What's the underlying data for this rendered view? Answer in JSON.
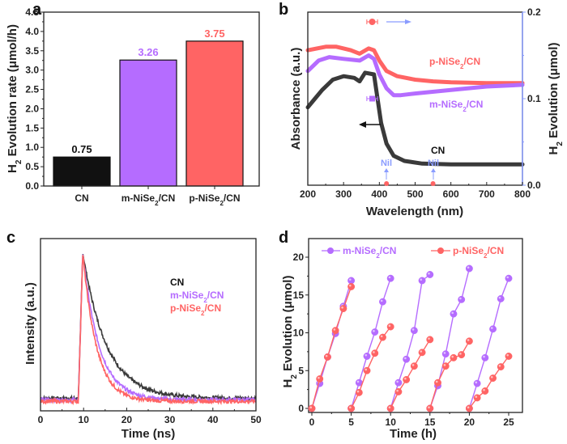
{
  "colors": {
    "cn": "#111111",
    "cn_curve": "#3a3a3a",
    "m": "#b56cff",
    "p": "#ff6464",
    "right_axis": "#8a9cff"
  },
  "chart_data": [
    {
      "panel": "a",
      "type": "bar",
      "title": "",
      "xlabel": "",
      "ylabel": "H2 Evolution rate (μmol/h)",
      "categories": [
        "CN",
        "m-NiSe2/CN",
        "p-NiSe2/CN"
      ],
      "values": [
        0.75,
        3.26,
        3.75
      ],
      "data_labels": [
        "0.75",
        "3.26",
        "3.75"
      ],
      "ylim": [
        0,
        4.5
      ],
      "yticks": [
        "0.0",
        "0.5",
        "1.0",
        "1.5",
        "2.0",
        "2.5",
        "3.0",
        "3.5",
        "4.0",
        "4.5"
      ],
      "grid": false
    },
    {
      "panel": "b",
      "type": "line",
      "xlabel": "Wavelength (nm)",
      "ylabel_left": "Absorbance (a.u.)",
      "ylabel_right": "H2 Evolution (μmol)",
      "xlim": [
        200,
        800
      ],
      "xticks": [
        "200",
        "300",
        "400",
        "500",
        "600",
        "700",
        "800"
      ],
      "ylim_right": [
        0,
        0.2
      ],
      "yticks_right": [
        "0.0",
        "0.1",
        "0.2"
      ],
      "series": [
        {
          "name": "p-NiSe2/CN",
          "x": [
            200,
            250,
            280,
            320,
            345,
            370,
            385,
            400,
            420,
            450,
            500,
            550,
            600,
            700,
            800
          ],
          "y": [
            0.78,
            0.8,
            0.8,
            0.78,
            0.76,
            0.79,
            0.78,
            0.72,
            0.66,
            0.63,
            0.61,
            0.6,
            0.595,
            0.59,
            0.59
          ]
        },
        {
          "name": "m-NiSe2/CN",
          "x": [
            200,
            230,
            260,
            300,
            345,
            370,
            385,
            400,
            420,
            440,
            460,
            500,
            600,
            700,
            800
          ],
          "y": [
            0.66,
            0.72,
            0.74,
            0.73,
            0.72,
            0.75,
            0.73,
            0.64,
            0.56,
            0.52,
            0.52,
            0.53,
            0.55,
            0.57,
            0.58
          ]
        },
        {
          "name": "CN",
          "x": [
            200,
            220,
            240,
            270,
            300,
            330,
            345,
            360,
            385,
            395,
            405,
            420,
            440,
            470,
            520,
            600,
            700,
            800
          ],
          "y": [
            0.45,
            0.5,
            0.55,
            0.61,
            0.63,
            0.62,
            0.6,
            0.65,
            0.64,
            0.5,
            0.36,
            0.24,
            0.17,
            0.14,
            0.125,
            0.12,
            0.12,
            0.12
          ]
        }
      ],
      "points_right_axis": [
        {
          "name": "p-NiSe2/CN",
          "x": 380,
          "y": 0.2,
          "xerr": 15
        },
        {
          "name": "m-NiSe2/CN",
          "x": 380,
          "y": 0.1,
          "xerr": 15
        },
        {
          "name": "p-NiSe2/CN",
          "x": 420,
          "y": 0.0
        },
        {
          "name": "p-NiSe2/CN",
          "x": 550,
          "y": 0.0
        }
      ],
      "annotations": [
        "p-NiSe2/CN",
        "m-NiSe2/CN",
        "CN",
        "Nil",
        "Nil"
      ]
    },
    {
      "panel": "c",
      "type": "line",
      "xlabel": "Time (ns)",
      "ylabel": "Intensity (a.u.)",
      "xlim": [
        0,
        50
      ],
      "xticks": [
        "0",
        "10",
        "20",
        "30",
        "40",
        "50"
      ],
      "legend": [
        "CN",
        "m-NiSe2/CN",
        "p-NiSe2/CN"
      ],
      "legend_position": "center-right",
      "series": [
        {
          "name": "CN",
          "peak_time": 9.8,
          "decay_tau": 5.5,
          "baseline": 0.04
        },
        {
          "name": "m-NiSe2/CN",
          "peak_time": 9.8,
          "decay_tau": 3.8,
          "baseline": 0.03
        },
        {
          "name": "p-NiSe2/CN",
          "peak_time": 9.8,
          "decay_tau": 3.2,
          "baseline": 0.02
        }
      ]
    },
    {
      "panel": "d",
      "type": "line",
      "xlabel": "Time (h)",
      "ylabel": "H2 Evolution (μmol)",
      "xlim": [
        -0.5,
        27
      ],
      "xticks": [
        "0",
        "5",
        "10",
        "15",
        "20",
        "25"
      ],
      "ylim": [
        -0.5,
        22
      ],
      "yticks": [
        "0",
        "5",
        "10",
        "15",
        "20"
      ],
      "legend": [
        "m-NiSe2/CN",
        "p-NiSe2/CN"
      ],
      "legend_position": "top",
      "series": [
        {
          "name": "m-NiSe2/CN",
          "cycles": [
            {
              "x": [
                0,
                1,
                2,
                3,
                4,
                5
              ],
              "y": [
                0,
                3.3,
                6.8,
                9.9,
                13.5,
                16.9
              ]
            },
            {
              "x": [
                5,
                6,
                7,
                8,
                9,
                10
              ],
              "y": [
                0,
                3.4,
                6.9,
                10.1,
                14.1,
                17.2
              ]
            },
            {
              "x": [
                10,
                11,
                12,
                13,
                14,
                15
              ],
              "y": [
                0,
                3.4,
                6.5,
                10.3,
                16.9,
                17.7
              ]
            },
            {
              "x": [
                15,
                16,
                17,
                18,
                19,
                20
              ],
              "y": [
                0,
                3.0,
                7.2,
                12.5,
                14.4,
                18.5
              ]
            },
            {
              "x": [
                20,
                21,
                22,
                23,
                24,
                25
              ],
              "y": [
                0,
                3.3,
                6.7,
                10.5,
                14.5,
                17.2
              ]
            }
          ]
        },
        {
          "name": "p-NiSe2/CN",
          "cycles": [
            {
              "x": [
                0,
                1,
                2,
                3,
                4,
                5
              ],
              "y": [
                0,
                3.9,
                6.8,
                10.3,
                13.2,
                16.1
              ]
            },
            {
              "x": [
                5,
                6,
                7,
                8,
                9,
                10
              ],
              "y": [
                0,
                2.1,
                5.0,
                7.3,
                9.4,
                10.8
              ]
            },
            {
              "x": [
                10,
                11,
                12,
                13,
                14,
                15
              ],
              "y": [
                0,
                2.2,
                3.8,
                5.6,
                7.4,
                9.1
              ]
            },
            {
              "x": [
                15,
                16,
                17,
                18,
                19,
                20
              ],
              "y": [
                0,
                3.4,
                5.6,
                6.7,
                7.1,
                8.9
              ]
            },
            {
              "x": [
                20,
                21,
                22,
                23,
                24,
                25
              ],
              "y": [
                0,
                1.4,
                2.3,
                4.0,
                5.5,
                6.9
              ]
            }
          ]
        }
      ]
    }
  ],
  "labels": {
    "panel_a": "a",
    "panel_b": "b",
    "panel_c": "c",
    "panel_d": "d",
    "a_ylabel_h": "H",
    "a_ylabel_sub": "2",
    "a_ylabel_rest": " Evolution rate (μmol/h)",
    "b_ylabel_left": "Absorbance (a.u.)",
    "b_ylabel_right_h": "H",
    "b_ylabel_right_sub": "2",
    "b_ylabel_right_rest": " Evolution (μmol)",
    "b_xlabel": "Wavelength (nm)",
    "b_ann_p_pre": "p-NiSe",
    "b_ann_m_pre": "m-NiSe",
    "b_ann_sub": "2",
    "b_ann_post": "/CN",
    "b_ann_cn": "CN",
    "b_nil": "Nil",
    "c_ylabel": "Intensity (a.u.)",
    "c_xlabel": "Time (ns)",
    "c_leg_cn": "CN",
    "c_leg_m_pre": "m-NiSe",
    "c_leg_p_pre": "p-NiSe",
    "d_ylabel_h": "H",
    "d_ylabel_sub": "2",
    "d_ylabel_rest": " Evolution (μmol)",
    "d_xlabel": "Time (h)",
    "d_leg_m_pre": "m-NiSe",
    "d_leg_p_pre": "p-NiSe",
    "cat_cn": "CN",
    "cat_m_pre": "m-NiSe",
    "cat_p_pre": "p-NiSe"
  }
}
